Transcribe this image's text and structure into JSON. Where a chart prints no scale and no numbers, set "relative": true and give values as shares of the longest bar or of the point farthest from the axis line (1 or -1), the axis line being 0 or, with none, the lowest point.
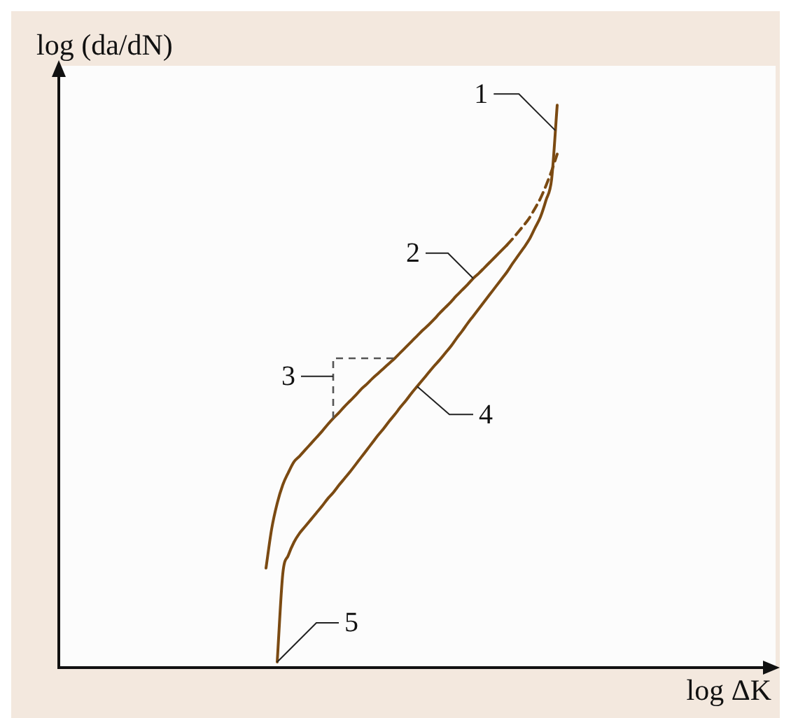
{
  "chart_data": {
    "type": "line",
    "relative": true,
    "xlabel": "log ΔK",
    "ylabel": "log (da/dN)",
    "marker": "none",
    "tick_labels": false,
    "categories": [
      null,
      null,
      null,
      null,
      null,
      null,
      null,
      null,
      null,
      null,
      null,
      null,
      null,
      null,
      null,
      null,
      null,
      null,
      null,
      null,
      null,
      null,
      null,
      null,
      null,
      null,
      null,
      null,
      null,
      null,
      null,
      null,
      null,
      null,
      null,
      null,
      null,
      null,
      null,
      null,
      null,
      null,
      null,
      null,
      null,
      null,
      null,
      null,
      null,
      null,
      null,
      null,
      null,
      null,
      null,
      null,
      null,
      null,
      null,
      null,
      null,
      null,
      null,
      null,
      null,
      null,
      null,
      null,
      null,
      null,
      null,
      null,
      null,
      null,
      null,
      null,
      null,
      null,
      null,
      null,
      null,
      null,
      null,
      null,
      null,
      null,
      null,
      null,
      null,
      null,
      null,
      null,
      null,
      null,
      null,
      null,
      null,
      null,
      null,
      null,
      null,
      null,
      null,
      null,
      null,
      null,
      null,
      null,
      null,
      null,
      null,
      null,
      null,
      null,
      null,
      null,
      null,
      null,
      null,
      null,
      null,
      null,
      null,
      null,
      null,
      null,
      null,
      null,
      null
    ],
    "series": [
      {
        "color": "#7b4a12",
        "line_style": "solid",
        "values": [
          null,
          null,
          null,
          null,
          null,
          null,
          null,
          null,
          null,
          null,
          null,
          null,
          null,
          null,
          null,
          null,
          null,
          null,
          null,
          null,
          null,
          null,
          null,
          null,
          null,
          null,
          null,
          null,
          null,
          null,
          null,
          null,
          null,
          null,
          null,
          null,
          null,
          null,
          null,
          0.01,
          0.167,
          0.2,
          0.223,
          0.239,
          0.251,
          0.263,
          0.275,
          0.287,
          0.3,
          0.311,
          0.324,
          0.336,
          0.348,
          0.361,
          0.374,
          0.387,
          0.4,
          0.413,
          0.425,
          0.438,
          0.45,
          0.463,
          0.475,
          0.488,
          0.5,
          0.512,
          0.524,
          0.536,
          0.547,
          0.559,
          0.571,
          0.585,
          0.598,
          0.612,
          0.625,
          0.638,
          0.651,
          0.664,
          0.677,
          0.69,
          0.703,
          0.718,
          0.732,
          0.746,
          0.761,
          0.781,
          0.801,
          0.831,
          0.868,
          1.0,
          null,
          null,
          null,
          null,
          null,
          null,
          null,
          null,
          null,
          null,
          null,
          null,
          null,
          null,
          null,
          null,
          null,
          null,
          null,
          null,
          null,
          null,
          null,
          null,
          null,
          null,
          null,
          null,
          null,
          null,
          null,
          null,
          null,
          null,
          null,
          null,
          null,
          null,
          null
        ]
      },
      {
        "color": "#7b4a12",
        "line_style": "solid",
        "values": [
          null,
          null,
          null,
          null,
          null,
          null,
          null,
          null,
          null,
          null,
          null,
          null,
          null,
          null,
          null,
          null,
          null,
          null,
          null,
          null,
          null,
          null,
          null,
          null,
          null,
          null,
          null,
          null,
          null,
          null,
          null,
          null,
          null,
          null,
          null,
          null,
          null,
          0.177,
          0.246,
          0.292,
          0.325,
          0.347,
          0.366,
          0.376,
          0.387,
          0.398,
          0.409,
          0.42,
          0.432,
          0.443,
          0.453,
          0.464,
          0.474,
          0.484,
          0.495,
          0.504,
          0.514,
          0.523,
          0.532,
          0.541,
          0.55,
          0.56,
          0.57,
          0.58,
          0.59,
          0.6,
          0.609,
          0.619,
          0.63,
          0.64,
          0.65,
          0.661,
          0.671,
          0.681,
          0.692,
          0.701,
          0.711,
          0.721,
          0.731,
          0.741,
          0.751,
          null,
          null,
          null,
          null,
          null,
          null,
          null,
          null,
          null,
          null,
          null,
          null,
          null,
          null,
          null,
          null,
          null,
          null,
          null,
          null,
          null,
          null,
          null,
          null,
          null,
          null,
          null,
          null,
          null,
          null,
          null,
          null,
          null,
          null,
          null,
          null,
          null,
          null,
          null,
          null,
          null,
          null,
          null,
          null,
          null,
          null,
          null,
          null
        ]
      },
      {
        "color": "#7b4a12",
        "line_style": "dashed",
        "values": [
          null,
          null,
          null,
          null,
          null,
          null,
          null,
          null,
          null,
          null,
          null,
          null,
          null,
          null,
          null,
          null,
          null,
          null,
          null,
          null,
          null,
          null,
          null,
          null,
          null,
          null,
          null,
          null,
          null,
          null,
          null,
          null,
          null,
          null,
          null,
          null,
          null,
          null,
          null,
          null,
          null,
          null,
          null,
          null,
          null,
          null,
          null,
          null,
          null,
          null,
          null,
          null,
          null,
          null,
          null,
          null,
          null,
          null,
          null,
          null,
          null,
          null,
          null,
          null,
          null,
          null,
          null,
          null,
          null,
          null,
          null,
          null,
          null,
          null,
          null,
          null,
          null,
          null,
          null,
          null,
          0.751,
          0.762,
          0.774,
          0.786,
          0.799,
          0.816,
          0.834,
          0.857,
          0.883,
          0.913,
          null,
          null,
          null,
          null,
          null,
          null,
          null,
          null,
          null,
          null,
          null,
          null,
          null,
          null,
          null,
          null,
          null,
          null,
          null,
          null,
          null,
          null,
          null,
          null,
          null,
          null,
          null,
          null,
          null,
          null,
          null,
          null,
          null,
          null,
          null,
          null,
          null,
          null,
          null
        ]
      }
    ],
    "annotations": [
      "1",
      "2",
      "3",
      "4",
      "5"
    ]
  }
}
